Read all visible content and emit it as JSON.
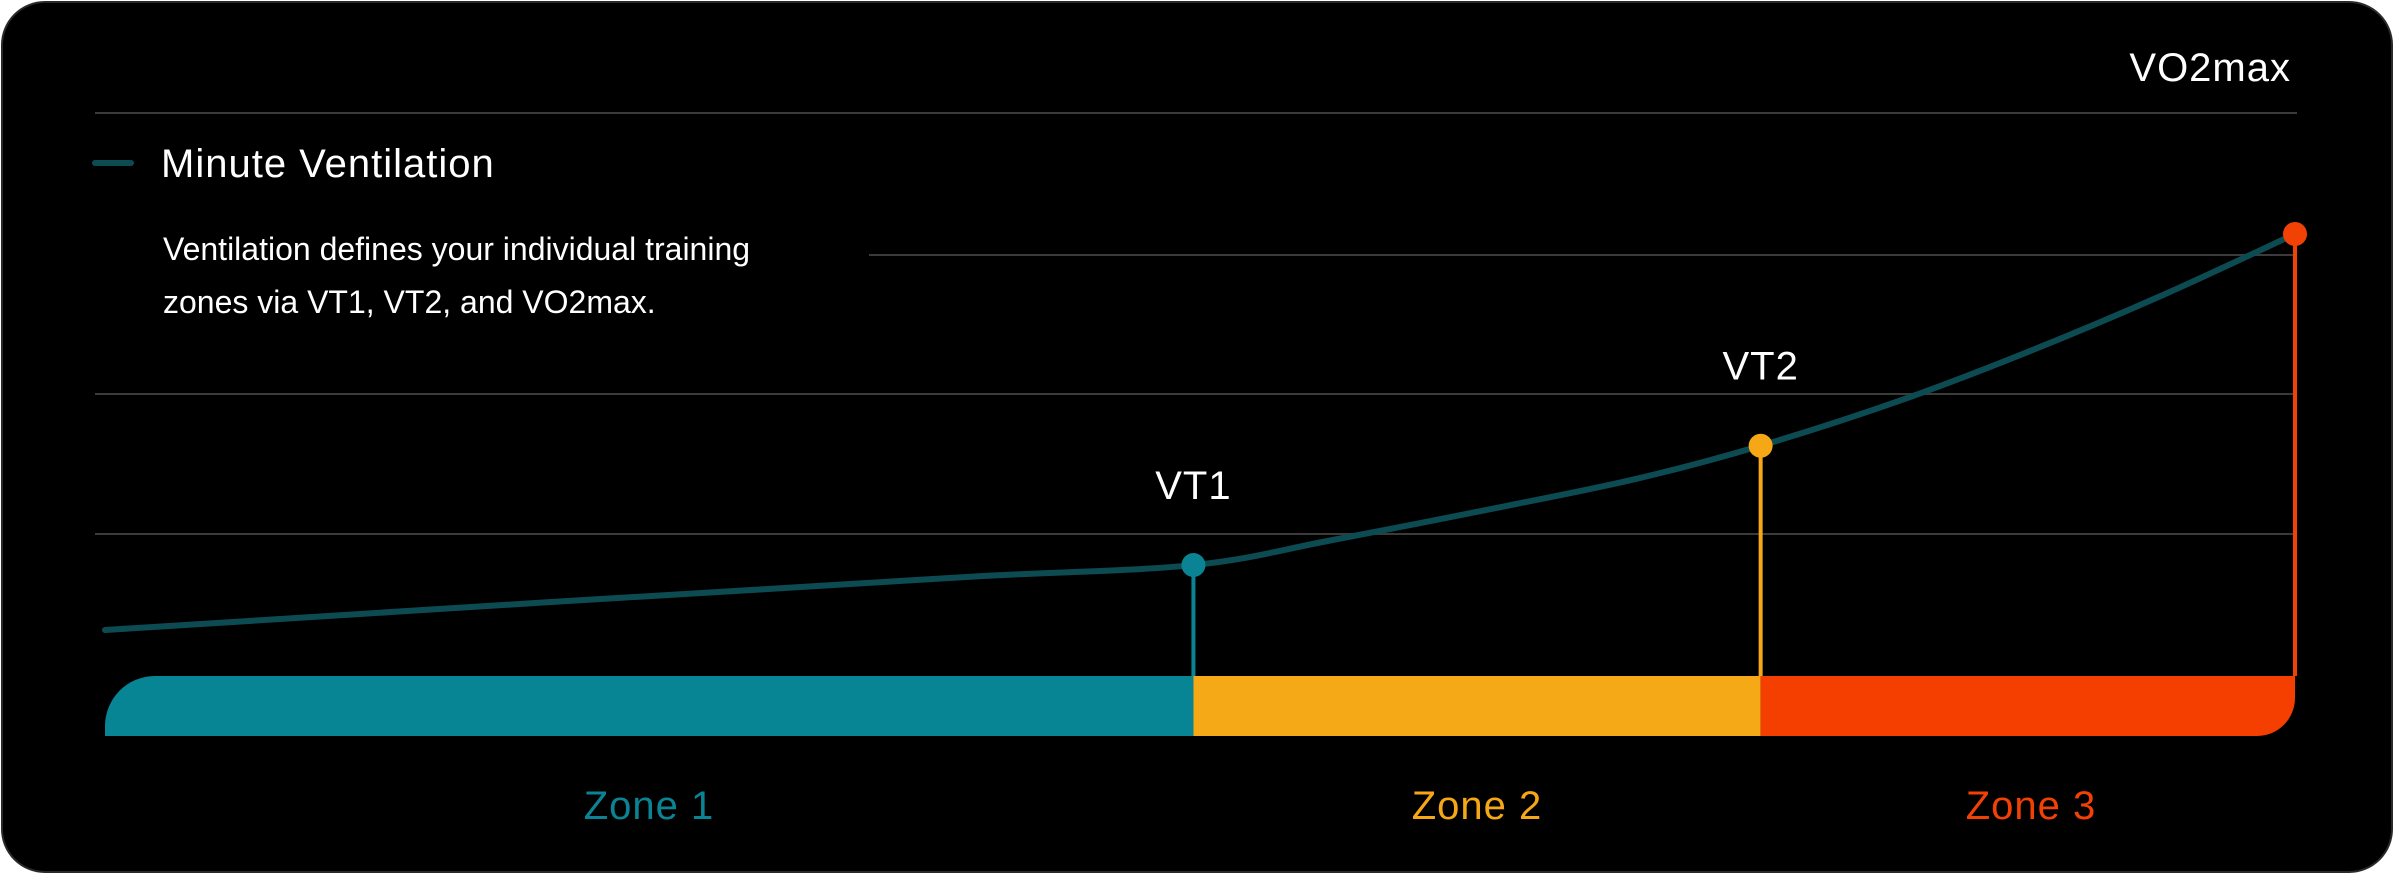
{
  "chart_data": {
    "type": "line",
    "title": "",
    "legend": {
      "label": "Minute Ventilation",
      "placement": "top-left"
    },
    "description": [
      "Ventilation defines your individual training",
      "zones via VT1, VT2, and VO2max."
    ],
    "xlim": [
      0,
      100
    ],
    "ylim": [
      0,
      100
    ],
    "grid": true,
    "series": [
      {
        "name": "Minute Ventilation",
        "color": "#0d4b53",
        "points": [
          [
            0,
            0
          ],
          [
            10,
            2.6
          ],
          [
            20,
            5.2
          ],
          [
            30,
            7.7
          ],
          [
            40,
            10.2
          ],
          [
            49.7,
            12.3
          ],
          [
            56,
            17
          ],
          [
            64,
            23.5
          ],
          [
            70,
            28.7
          ],
          [
            75.6,
            34.9
          ],
          [
            82,
            43.5
          ],
          [
            88,
            53
          ],
          [
            94,
            63.5
          ],
          [
            100,
            75
          ]
        ]
      }
    ],
    "thresholds": [
      {
        "label": "VT1",
        "x": 49.7,
        "y": 12.3,
        "color": "#0a8494"
      },
      {
        "label": "VT2",
        "x": 75.6,
        "y": 34.9,
        "color": "#f5a716"
      },
      {
        "label": "VO2max",
        "x": 100,
        "y": 75,
        "color": "#f24105"
      }
    ],
    "zones": [
      {
        "label": "Zone 1",
        "start": 0,
        "end": 49.7,
        "color": "#088594",
        "label_color": "#0a8494"
      },
      {
        "label": "Zone 2",
        "start": 49.7,
        "end": 75.6,
        "color": "#f6a916",
        "label_color": "#f5a716"
      },
      {
        "label": "Zone 3",
        "start": 75.6,
        "end": 100,
        "color": "#f53f00",
        "label_color": "#f24105"
      }
    ]
  }
}
